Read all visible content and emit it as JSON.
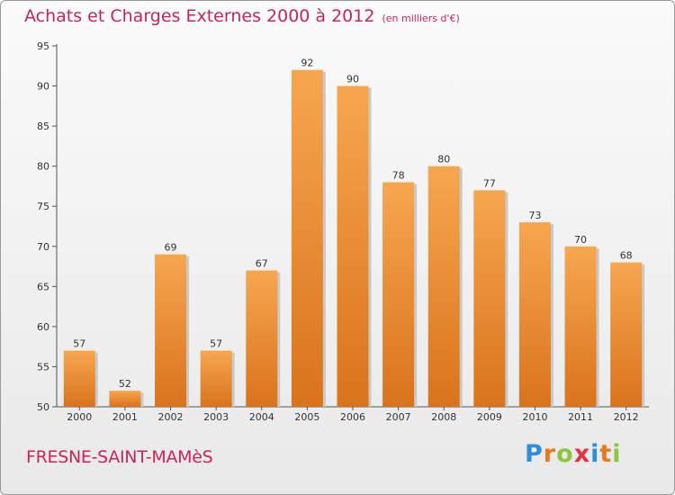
{
  "chart_data": {
    "type": "bar",
    "title": "Achats et Charges Externes 2000 à 2012",
    "subtitle": "(en milliers d'€)",
    "categories": [
      "2000",
      "2001",
      "2002",
      "2003",
      "2004",
      "2005",
      "2006",
      "2007",
      "2008",
      "2009",
      "2010",
      "2011",
      "2012"
    ],
    "values": [
      57,
      52,
      69,
      57,
      67,
      92,
      90,
      78,
      80,
      77,
      73,
      70,
      68
    ],
    "ylim": [
      50,
      95
    ],
    "yticks": [
      50,
      55,
      60,
      65,
      70,
      75,
      80,
      85,
      90,
      95
    ],
    "grid": false,
    "bar_color_top": "#f7a650",
    "bar_color_bottom": "#d9731c",
    "title_color": "#c8255a"
  },
  "footer": {
    "town": "FRESNE-SAINT-MAMèS",
    "logo_letters": [
      {
        "char": "P",
        "color": "#2e8fd6"
      },
      {
        "char": "r",
        "color": "#e8791e"
      },
      {
        "char": "o",
        "color": "#8cc63f"
      },
      {
        "char": "x",
        "color": "#e8313f"
      },
      {
        "char": "i",
        "color": "#2e8fd6"
      },
      {
        "char": "t",
        "color": "#e8791e"
      },
      {
        "char": "i",
        "color": "#8cc63f"
      }
    ]
  }
}
